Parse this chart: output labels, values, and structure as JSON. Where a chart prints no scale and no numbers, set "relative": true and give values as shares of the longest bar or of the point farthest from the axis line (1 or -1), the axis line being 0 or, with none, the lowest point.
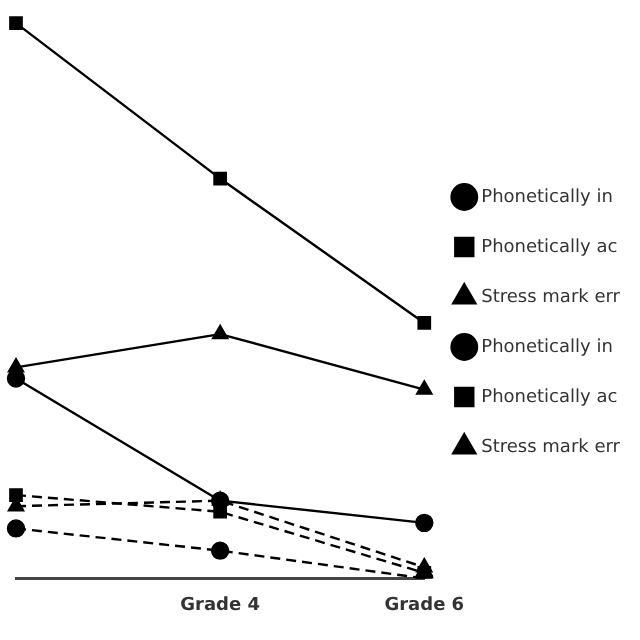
{
  "chart_data": {
    "type": "line",
    "relative": true,
    "categories": [
      null,
      "Grade 4",
      "Grade 6"
    ],
    "series": [
      {
        "name": "Phonetically in",
        "color": "#000000",
        "marker": "circle",
        "line_style": "solid",
        "values": [
          0.36,
          0.14,
          0.1
        ]
      },
      {
        "name": "Phonetically ac",
        "color": "#000000",
        "marker": "square",
        "line_style": "solid",
        "values": [
          1,
          0.72,
          0.46
        ]
      },
      {
        "name": "Stress mark err",
        "color": "#000000",
        "marker": "triangle",
        "line_style": "solid",
        "values": [
          0.38,
          0.44,
          0.34
        ]
      },
      {
        "name": "Phonetically in",
        "color": "#000000",
        "marker": "circle",
        "line_style": "dashed",
        "values": [
          0.09,
          0.05,
          0.0
        ]
      },
      {
        "name": "Phonetically ac",
        "color": "#000000",
        "marker": "square",
        "line_style": "dashed",
        "values": [
          0.15,
          0.12,
          0.01
        ]
      },
      {
        "name": "Stress mark err",
        "color": "#000000",
        "marker": "triangle",
        "line_style": "dashed",
        "values": [
          0.13,
          0.14,
          0.02
        ]
      }
    ],
    "legend": "right",
    "grid": false
  }
}
